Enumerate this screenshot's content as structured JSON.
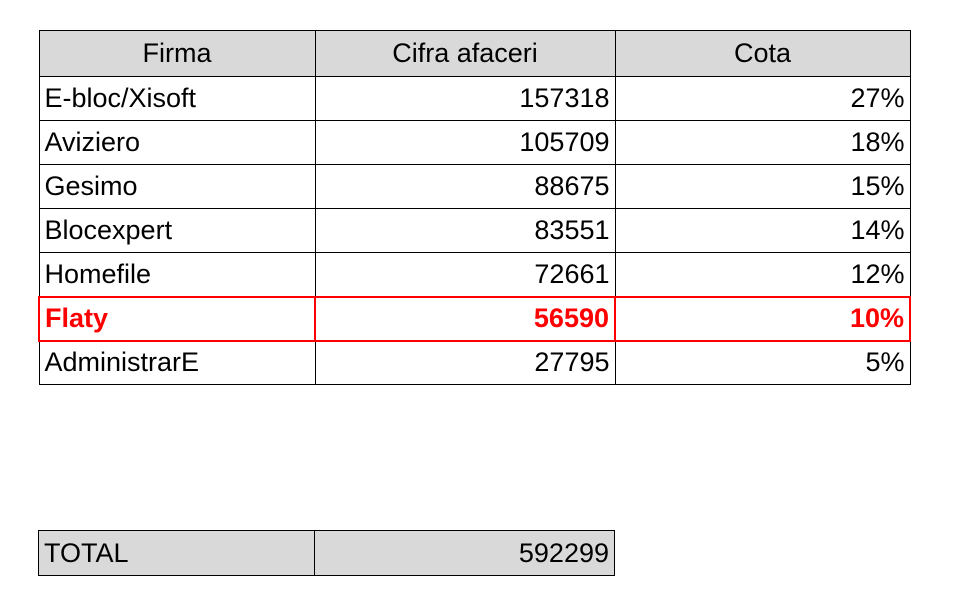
{
  "table": {
    "headers": [
      "Firma",
      "Cifra afaceri",
      "Cota"
    ],
    "rows": [
      {
        "firma": "E-bloc/Xisoft",
        "cifra": "157318",
        "cota": "27%"
      },
      {
        "firma": "Aviziero",
        "cifra": "105709",
        "cota": "18%"
      },
      {
        "firma": "Gesimo",
        "cifra": "88675",
        "cota": "15%"
      },
      {
        "firma": "Blocexpert",
        "cifra": "83551",
        "cota": "14%"
      },
      {
        "firma": "Homefile",
        "cifra": "72661",
        "cota": "12%"
      },
      {
        "firma": "Flaty",
        "cifra": "56590",
        "cota": "10%",
        "highlight": true
      },
      {
        "firma": "AdministrarE",
        "cifra": "27795",
        "cota": "5%"
      }
    ]
  },
  "total": {
    "label": "TOTAL",
    "value": "592299"
  },
  "colors": {
    "header_bg": "#d9d9d9",
    "highlight": "#ff0000",
    "border": "#000000"
  }
}
